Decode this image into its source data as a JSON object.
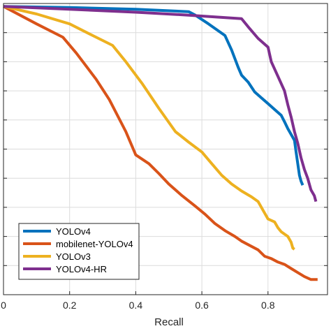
{
  "chart_data": {
    "type": "line",
    "xlabel": "Recall",
    "ylabel": "",
    "title": "",
    "xlim": [
      0,
      0.98
    ],
    "ylim": [
      0.5,
      1.0
    ],
    "x_ticks": [
      0,
      0.2,
      0.4,
      0.6,
      0.8
    ],
    "x_tick_labels": [
      "0",
      "0.2",
      "0.4",
      "0.6",
      "0.8"
    ],
    "y_ticks": [
      0.55,
      0.6,
      0.65,
      0.7,
      0.75,
      0.8,
      0.85,
      0.9,
      0.95
    ],
    "grid": true,
    "legend_position": "bottom-left",
    "series": [
      {
        "name": "YOLOv4",
        "color": "#0072BD",
        "points": [
          [
            0,
            0.995
          ],
          [
            0.2,
            0.993
          ],
          [
            0.4,
            0.99
          ],
          [
            0.56,
            0.986
          ],
          [
            0.58,
            0.98
          ],
          [
            0.62,
            0.965
          ],
          [
            0.67,
            0.945
          ],
          [
            0.69,
            0.92
          ],
          [
            0.71,
            0.89
          ],
          [
            0.72,
            0.877
          ],
          [
            0.74,
            0.865
          ],
          [
            0.76,
            0.848
          ],
          [
            0.78,
            0.838
          ],
          [
            0.8,
            0.828
          ],
          [
            0.82,
            0.818
          ],
          [
            0.84,
            0.808
          ],
          [
            0.85,
            0.797
          ],
          [
            0.86,
            0.785
          ],
          [
            0.88,
            0.765
          ],
          [
            0.885,
            0.745
          ],
          [
            0.89,
            0.725
          ],
          [
            0.895,
            0.705
          ],
          [
            0.9,
            0.695
          ],
          [
            0.905,
            0.688
          ]
        ]
      },
      {
        "name": "mobilenet-YOLOv4",
        "color": "#D95319",
        "points": [
          [
            0,
            0.995
          ],
          [
            0.1,
            0.965
          ],
          [
            0.18,
            0.942
          ],
          [
            0.22,
            0.915
          ],
          [
            0.28,
            0.87
          ],
          [
            0.32,
            0.835
          ],
          [
            0.37,
            0.78
          ],
          [
            0.4,
            0.74
          ],
          [
            0.44,
            0.725
          ],
          [
            0.47,
            0.708
          ],
          [
            0.5,
            0.69
          ],
          [
            0.54,
            0.67
          ],
          [
            0.58,
            0.652
          ],
          [
            0.61,
            0.638
          ],
          [
            0.64,
            0.622
          ],
          [
            0.67,
            0.61
          ],
          [
            0.7,
            0.6
          ],
          [
            0.72,
            0.592
          ],
          [
            0.75,
            0.583
          ],
          [
            0.77,
            0.577
          ],
          [
            0.79,
            0.566
          ],
          [
            0.81,
            0.562
          ],
          [
            0.83,
            0.556
          ],
          [
            0.85,
            0.552
          ],
          [
            0.87,
            0.545
          ],
          [
            0.89,
            0.538
          ],
          [
            0.91,
            0.531
          ],
          [
            0.93,
            0.526
          ],
          [
            0.95,
            0.526
          ]
        ]
      },
      {
        "name": "YOLOv3",
        "color": "#EDB120",
        "points": [
          [
            0,
            0.995
          ],
          [
            0.1,
            0.982
          ],
          [
            0.2,
            0.965
          ],
          [
            0.27,
            0.945
          ],
          [
            0.33,
            0.928
          ],
          [
            0.37,
            0.9
          ],
          [
            0.42,
            0.862
          ],
          [
            0.47,
            0.82
          ],
          [
            0.52,
            0.78
          ],
          [
            0.56,
            0.762
          ],
          [
            0.6,
            0.745
          ],
          [
            0.63,
            0.725
          ],
          [
            0.66,
            0.705
          ],
          [
            0.69,
            0.69
          ],
          [
            0.72,
            0.678
          ],
          [
            0.75,
            0.668
          ],
          [
            0.77,
            0.66
          ],
          [
            0.79,
            0.64
          ],
          [
            0.8,
            0.63
          ],
          [
            0.82,
            0.625
          ],
          [
            0.83,
            0.615
          ],
          [
            0.84,
            0.608
          ],
          [
            0.86,
            0.6
          ],
          [
            0.87,
            0.59
          ],
          [
            0.875,
            0.58
          ],
          [
            0.88,
            0.578
          ]
        ]
      },
      {
        "name": "YOLOv4-HR",
        "color": "#7E2F8E",
        "points": [
          [
            0,
            0.995
          ],
          [
            0.2,
            0.99
          ],
          [
            0.4,
            0.985
          ],
          [
            0.56,
            0.98
          ],
          [
            0.64,
            0.977
          ],
          [
            0.72,
            0.974
          ],
          [
            0.74,
            0.96
          ],
          [
            0.77,
            0.94
          ],
          [
            0.8,
            0.925
          ],
          [
            0.81,
            0.9
          ],
          [
            0.83,
            0.875
          ],
          [
            0.85,
            0.85
          ],
          [
            0.86,
            0.826
          ],
          [
            0.87,
            0.805
          ],
          [
            0.88,
            0.78
          ],
          [
            0.89,
            0.76
          ],
          [
            0.9,
            0.735
          ],
          [
            0.91,
            0.715
          ],
          [
            0.92,
            0.7
          ],
          [
            0.93,
            0.68
          ],
          [
            0.94,
            0.67
          ],
          [
            0.945,
            0.66
          ]
        ]
      }
    ]
  }
}
